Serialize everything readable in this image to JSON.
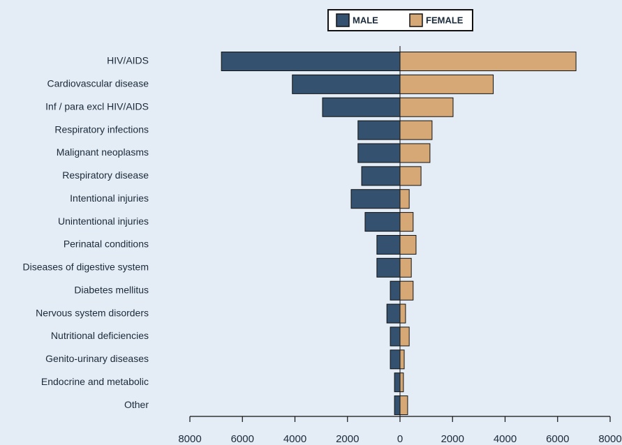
{
  "chart_data": {
    "type": "butterfly-bar",
    "categories": [
      "HIV/AIDS",
      "Cardiovascular disease",
      "Inf / para excl HIV/AIDS",
      "Respiratory infections",
      "Malignant neoplasms",
      "Respiratory disease",
      "Intentional injuries",
      "Unintentional injuries",
      "Perinatal conditions",
      "Diseases of digestive system",
      "Diabetes mellitus",
      "Nervous system disorders",
      "Nutritional deficiencies",
      "Genito-urinary diseases",
      "Endocrine and metabolic",
      "Other"
    ],
    "series": [
      {
        "name": "MALE",
        "color": "#34526f",
        "values": [
          -6800,
          -4100,
          -2950,
          -1600,
          -1600,
          -1460,
          -1860,
          -1330,
          -880,
          -880,
          -370,
          -500,
          -370,
          -370,
          -210,
          -210
        ]
      },
      {
        "name": "FEMALE",
        "color": "#d6a876",
        "values": [
          6700,
          3550,
          2020,
          1220,
          1140,
          800,
          350,
          500,
          610,
          430,
          500,
          210,
          350,
          160,
          130,
          290
        ]
      }
    ],
    "xlim": [
      -8000,
      8000
    ],
    "xticks": [
      {
        "value": -8000,
        "label": "8000"
      },
      {
        "value": -6000,
        "label": "6000"
      },
      {
        "value": -4000,
        "label": "4000"
      },
      {
        "value": -2000,
        "label": "2000"
      },
      0,
      2000,
      4000,
      6000,
      8000
    ],
    "legend": "top"
  }
}
